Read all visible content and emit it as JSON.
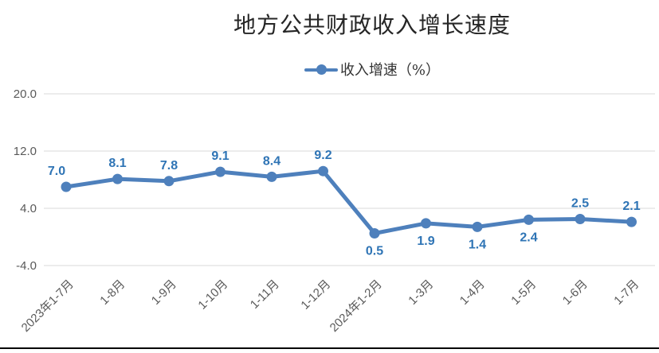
{
  "header": {
    "title": "地方公共财政收入增长速度"
  },
  "legend": {
    "label": "收入增速（%）"
  },
  "colors": {
    "line": "#4E80BC",
    "data_label": "#2E74B5",
    "axis_text": "#595959",
    "gridline": "#D9D9D9",
    "title_text": "#262626",
    "bottom_rule": "#000000",
    "background": "#FFFFFF"
  },
  "chart_data": {
    "type": "line",
    "title": "地方公共财政收入增长速度",
    "legend_entries": [
      "收入增速（%）"
    ],
    "legend_position": "top",
    "grid": true,
    "categories": [
      "2023年1-7月",
      "1-8月",
      "1-9月",
      "1-10月",
      "1-11月",
      "1-12月",
      "2024年1-2月",
      "1-3月",
      "1-4月",
      "1-5月",
      "1-6月",
      "1-7月"
    ],
    "series": [
      {
        "name": "收入增速（%）",
        "values": [
          7.0,
          8.1,
          7.8,
          9.1,
          8.4,
          9.2,
          0.5,
          1.9,
          1.4,
          2.4,
          2.5,
          2.1
        ],
        "labels": [
          "7.0",
          "8.1",
          "7.8",
          "9.1",
          "8.4",
          "9.2",
          "0.5",
          "1.9",
          "1.4",
          "2.4",
          "2.5",
          "2.1"
        ]
      }
    ],
    "yticks": [
      {
        "label": "20.0",
        "value": 20.0
      },
      {
        "label": "12.0",
        "value": 12.0
      },
      {
        "label": "4.0",
        "value": 4.0
      },
      {
        "label": "-4.0",
        "value": -4.0
      }
    ],
    "ylim": [
      -4.0,
      20.0
    ],
    "label_positions": [
      "above",
      "above",
      "above",
      "above",
      "above",
      "above",
      "below",
      "below",
      "below",
      "below",
      "above",
      "above"
    ],
    "label_offsets_x": [
      -12,
      0,
      0,
      0,
      0,
      0,
      0,
      0,
      0,
      0,
      0,
      0
    ]
  }
}
